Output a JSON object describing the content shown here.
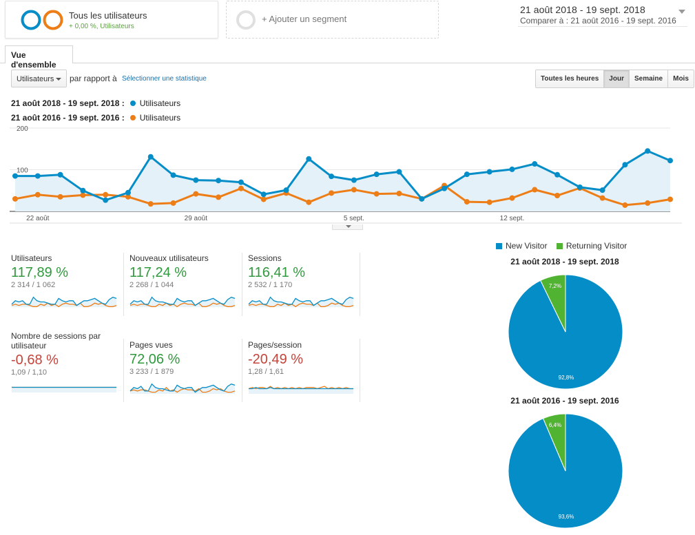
{
  "segments": {
    "active_title": "Tous les utilisateurs",
    "active_sub": "+ 0,00 %, Utilisateurs",
    "add_label": "+ Ajouter un segment"
  },
  "date_range": {
    "main": "21 août 2018 - 19 sept. 2018",
    "compare": "Comparer à : 21 août 2016 - 19 sept. 2016"
  },
  "tabs": {
    "overview": "Vue d'ensemble"
  },
  "controls": {
    "metric_select": "Utilisateurs",
    "compare_label": "par rapport à",
    "select_stat": "Sélectionner une statistique",
    "granularity": [
      "Toutes les heures",
      "Jour",
      "Semaine",
      "Mois"
    ],
    "granularity_selected": "Jour"
  },
  "legend": [
    {
      "period": "21 août 2018 - 19 sept. 2018 :",
      "metric": "Utilisateurs",
      "color": "#058dc7"
    },
    {
      "period": "21 août 2016 - 19 sept. 2016 :",
      "metric": "Utilisateurs",
      "color": "#ed7e17"
    }
  ],
  "chart_data": {
    "type": "line",
    "y_ticks": [
      "200",
      "100"
    ],
    "ylim": [
      0,
      200
    ],
    "x_tick_labels": [
      "22 août",
      "29 août",
      "5 sept.",
      "12 sept."
    ],
    "x_tick_index": [
      1,
      8,
      15,
      22
    ],
    "grid": true,
    "series": [
      {
        "name": "21 août 2018 - 19 sept. 2018",
        "color": "#058dc7",
        "fill": true,
        "values": [
          85,
          85,
          88,
          50,
          27,
          45,
          131,
          87,
          75,
          74,
          70,
          41,
          51,
          126,
          84,
          75,
          89,
          95,
          30,
          55,
          89,
          95,
          101,
          114,
          88,
          58,
          51,
          112,
          145,
          122
        ]
      },
      {
        "name": "21 août 2016 - 19 sept. 2016",
        "color": "#ed7e17",
        "fill": false,
        "values": [
          30,
          40,
          35,
          39,
          40,
          35,
          18,
          20,
          42,
          34,
          55,
          29,
          44,
          22,
          44,
          52,
          42,
          43,
          30,
          62,
          23,
          22,
          32,
          52,
          38,
          56,
          32,
          15,
          20,
          29
        ]
      }
    ]
  },
  "tiles": [
    {
      "label": "Utilisateurs",
      "pct": "117,89 %",
      "cmp": "2 314 / 1 062",
      "sign": "pos",
      "a": [
        3,
        6,
        5,
        6,
        3,
        3,
        9,
        6,
        5,
        5,
        4,
        3,
        3,
        8,
        6,
        5,
        6,
        6,
        2,
        4,
        6,
        6,
        7,
        8,
        6,
        4,
        3,
        7,
        9,
        8
      ],
      "b": [
        2,
        3,
        2,
        3,
        3,
        2,
        1,
        1,
        3,
        2,
        4,
        2,
        3,
        1,
        3,
        4,
        3,
        3,
        2,
        4,
        1,
        1,
        2,
        4,
        3,
        4,
        2,
        1,
        1,
        2
      ]
    },
    {
      "label": "Nouveaux utilisateurs",
      "pct": "117,24 %",
      "cmp": "2 268 / 1 044",
      "sign": "pos",
      "a": [
        3,
        6,
        5,
        6,
        3,
        3,
        9,
        6,
        5,
        5,
        4,
        3,
        3,
        8,
        6,
        5,
        6,
        6,
        2,
        4,
        6,
        6,
        7,
        8,
        6,
        4,
        3,
        7,
        9,
        8
      ],
      "b": [
        2,
        3,
        2,
        3,
        3,
        2,
        1,
        1,
        3,
        2,
        4,
        2,
        3,
        1,
        3,
        4,
        3,
        3,
        2,
        4,
        1,
        1,
        2,
        4,
        3,
        4,
        2,
        1,
        1,
        2
      ]
    },
    {
      "label": "Sessions",
      "pct": "116,41 %",
      "cmp": "2 532 / 1 170",
      "sign": "pos",
      "a": [
        3,
        6,
        5,
        6,
        3,
        3,
        9,
        6,
        5,
        5,
        4,
        3,
        3,
        8,
        6,
        5,
        6,
        6,
        2,
        4,
        6,
        6,
        7,
        8,
        6,
        4,
        3,
        7,
        9,
        8
      ],
      "b": [
        2,
        3,
        2,
        3,
        3,
        2,
        1,
        1,
        3,
        2,
        4,
        2,
        3,
        1,
        3,
        4,
        3,
        3,
        2,
        4,
        1,
        1,
        2,
        4,
        3,
        4,
        2,
        1,
        1,
        2
      ]
    },
    {
      "label": "Nombre de sessions par utilisateur",
      "pct": "-0,68 %",
      "cmp": "1,09 / 1,10",
      "sign": "neg",
      "a": [
        5,
        5,
        5,
        5,
        5,
        5,
        5,
        5,
        5,
        5,
        5,
        5,
        5,
        5,
        5,
        5,
        5,
        5,
        5,
        5,
        5,
        5,
        5,
        5,
        5,
        5,
        5,
        5,
        5,
        5
      ],
      "b": [
        5,
        5,
        5,
        5,
        5,
        5,
        5,
        5,
        5,
        5,
        5,
        5,
        5,
        5,
        5,
        5,
        5,
        5,
        5,
        5,
        5,
        5,
        5,
        5,
        5,
        5,
        5,
        5,
        5,
        5
      ]
    },
    {
      "label": "Pages vues",
      "pct": "72,06 %",
      "cmp": "3 233 / 1 879",
      "sign": "pos",
      "a": [
        3,
        6,
        5,
        7,
        3,
        3,
        9,
        6,
        5,
        5,
        4,
        3,
        3,
        8,
        6,
        5,
        6,
        6,
        2,
        4,
        6,
        6,
        7,
        8,
        6,
        4,
        3,
        7,
        9,
        8
      ],
      "b": [
        3,
        4,
        3,
        4,
        4,
        3,
        2,
        2,
        4,
        3,
        6,
        3,
        4,
        2,
        4,
        5,
        4,
        4,
        3,
        5,
        2,
        2,
        3,
        5,
        4,
        5,
        3,
        2,
        2,
        3
      ]
    },
    {
      "label": "Pages/session",
      "pct": "-20,49 %",
      "cmp": "1,28 / 1,61",
      "sign": "neg",
      "a": [
        5,
        5,
        6,
        5,
        5,
        5,
        6,
        5,
        5,
        5,
        5,
        5,
        5,
        5,
        5,
        5,
        5,
        5,
        5,
        5,
        5,
        5,
        5,
        5,
        5,
        5,
        5,
        5,
        5,
        5
      ],
      "b": [
        5,
        6,
        5,
        6,
        6,
        5,
        7,
        5,
        6,
        5,
        6,
        5,
        6,
        5,
        6,
        5,
        6,
        6,
        6,
        5,
        6,
        7,
        5,
        6,
        5,
        6,
        5,
        6,
        5,
        5
      ]
    }
  ],
  "pies": {
    "legend": [
      {
        "label": "New Visitor",
        "color": "#058dc7"
      },
      {
        "label": "Returning Visitor",
        "color": "#50b432"
      }
    ],
    "charts": [
      {
        "title": "21 août 2018 - 19 sept. 2018",
        "new_pct": 92.8,
        "ret_pct": 7.2,
        "new_label": "92,8%",
        "ret_label": "7,2%"
      },
      {
        "title": "21 août 2016 - 19 sept. 2016",
        "new_pct": 93.6,
        "ret_pct": 6.4,
        "new_label": "93,6%",
        "ret_label": "6,4%"
      }
    ]
  }
}
